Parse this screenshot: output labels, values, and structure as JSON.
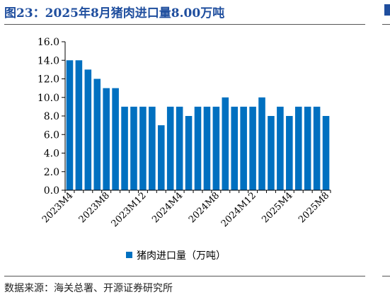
{
  "header": {
    "title": "图23：2025年8月猪肉进口量8.00万吨"
  },
  "footer": {
    "source": "数据来源：海关总署、开源证券研究所"
  },
  "colors": {
    "bar": "#0070c0",
    "title": "#1f4e9e",
    "axis": "#000000"
  },
  "chart_data": {
    "type": "bar",
    "title": "",
    "xlabel": "",
    "ylabel": "",
    "ylim": [
      0,
      16
    ],
    "yticks": [
      "0.0",
      "2.0",
      "4.0",
      "6.0",
      "8.0",
      "10.0",
      "12.0",
      "14.0",
      "16.0"
    ],
    "grid": false,
    "legend_position": "bottom",
    "categories": [
      "2023M4",
      "2023M5",
      "2023M6",
      "2023M7",
      "2023M8",
      "2023M9",
      "2023M10",
      "2023M11",
      "2023M12",
      "2024M1",
      "2024M2",
      "2024M3",
      "2024M4",
      "2024M5",
      "2024M6",
      "2024M7",
      "2024M8",
      "2024M9",
      "2024M10",
      "2024M11",
      "2024M12",
      "2025M1",
      "2025M2",
      "2025M3",
      "2025M4",
      "2025M5",
      "2025M6",
      "2025M7",
      "2025M8"
    ],
    "tick_labels": [
      "2023M4",
      "2023M8",
      "2023M12",
      "2024M4",
      "2024M8",
      "2024M12",
      "2025M4",
      "2025M8"
    ],
    "series": [
      {
        "name": "猪肉进口量（万吨）",
        "values": [
          14,
          14,
          13,
          12,
          11,
          11,
          9,
          9,
          9,
          9,
          7,
          9,
          9,
          8,
          9,
          9,
          9,
          10,
          9,
          9,
          9,
          10,
          8,
          9,
          8,
          9,
          9,
          9,
          8
        ]
      }
    ]
  }
}
